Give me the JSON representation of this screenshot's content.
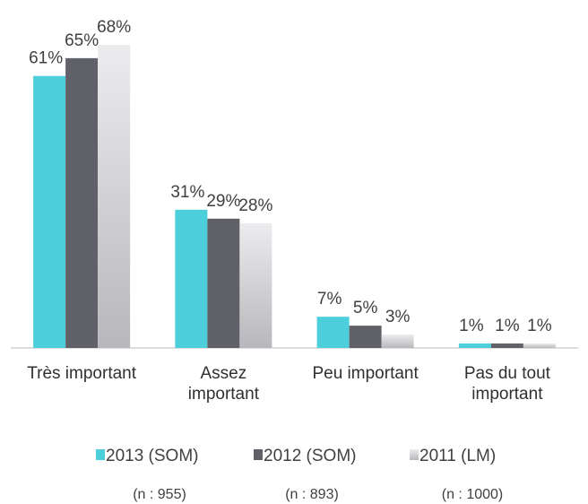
{
  "chart_data": {
    "type": "bar",
    "categories": [
      "Très important",
      "Assez\nimportant",
      "Peu important",
      "Pas du tout\nimportant"
    ],
    "ylim": [
      0,
      70
    ],
    "series": [
      {
        "name": "2013 (SOM)",
        "note": "(n : 955)",
        "color": "#4dcfdb",
        "values": [
          61,
          31,
          7,
          1
        ],
        "value_labels": [
          "61%",
          "31%",
          "7%",
          "1%"
        ]
      },
      {
        "name": "2012 (SOM)",
        "note": "(n : 893)",
        "color": "#606068",
        "values": [
          65,
          29,
          5,
          1
        ],
        "value_labels": [
          "65%",
          "29%",
          "5%",
          "1%"
        ]
      },
      {
        "name": "2011 (LM)",
        "note": "(n : 1000)",
        "color": "#d6d6da",
        "values": [
          68,
          28,
          3,
          1
        ],
        "value_labels": [
          "68%",
          "28%",
          "3%",
          "1%"
        ]
      }
    ]
  }
}
